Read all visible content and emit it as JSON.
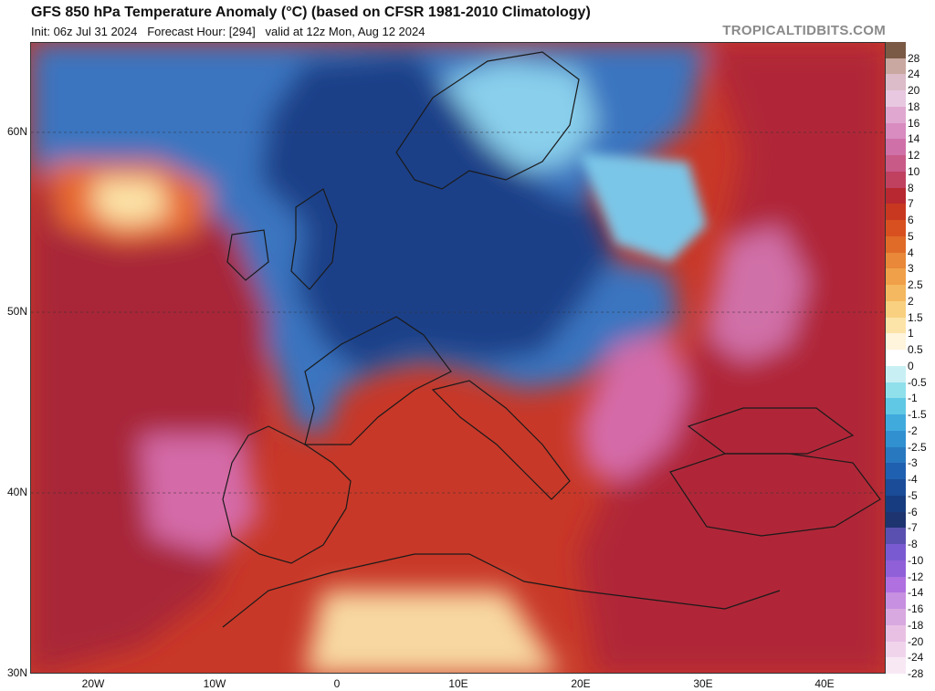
{
  "header": {
    "title": "GFS 850 hPa Temperature Anomaly (°C) (based on CFSR 1981-2010 Climatology)",
    "init": "Init: 06z Jul 31 2024",
    "forecast_hour": "Forecast Hour: [294]",
    "valid": "valid at 12z Mon, Aug 12 2024",
    "brand": "TROPICALTIDBITS.COM"
  },
  "map": {
    "lat_labels": [
      "60N",
      "50N",
      "40N",
      "30N"
    ],
    "lon_labels": [
      "20W",
      "10W",
      "0",
      "10E",
      "20E",
      "30E",
      "40E"
    ]
  },
  "colorbar": {
    "labels": [
      "28",
      "24",
      "20",
      "18",
      "16",
      "14",
      "12",
      "10",
      "8",
      "7",
      "6",
      "5",
      "4",
      "3",
      "2.5",
      "2",
      "1.5",
      "1",
      "0.5",
      "0",
      "-0.5",
      "-1",
      "-1.5",
      "-2",
      "-2.5",
      "-3",
      "-4",
      "-5",
      "-6",
      "-7",
      "-8",
      "-10",
      "-12",
      "-14",
      "-16",
      "-18",
      "-20",
      "-24",
      "-28"
    ],
    "colors": [
      "#7a5a45",
      "#c8a8a0",
      "#dcbcc8",
      "#e8c8e0",
      "#e0a8d0",
      "#d88cc0",
      "#d070a8",
      "#c85a88",
      "#c04060",
      "#b82830",
      "#c83820",
      "#d85020",
      "#e06a28",
      "#e88838",
      "#f0a048",
      "#f4b860",
      "#f8d080",
      "#fce4a8",
      "#fff4dc",
      "#ffffff",
      "#c8f0f4",
      "#90e0ec",
      "#60c8e4",
      "#40aadc",
      "#3090d0",
      "#2878c0",
      "#2060b0",
      "#1a4c98",
      "#183c80",
      "#1e3470",
      "#5a50b0",
      "#7a5ad0",
      "#9060d8",
      "#b070e0",
      "#c890e0",
      "#d8a8e0",
      "#e8c0e4",
      "#f0d4ec",
      "#f8e8f4"
    ]
  },
  "colors": {
    "warm_dark": "#a82838",
    "warm": "#d84a28",
    "pink": "#d46aa8",
    "cold": "#2c5ea8",
    "cold_dark": "#1e3c7c",
    "cool": "#5aa8dc"
  }
}
